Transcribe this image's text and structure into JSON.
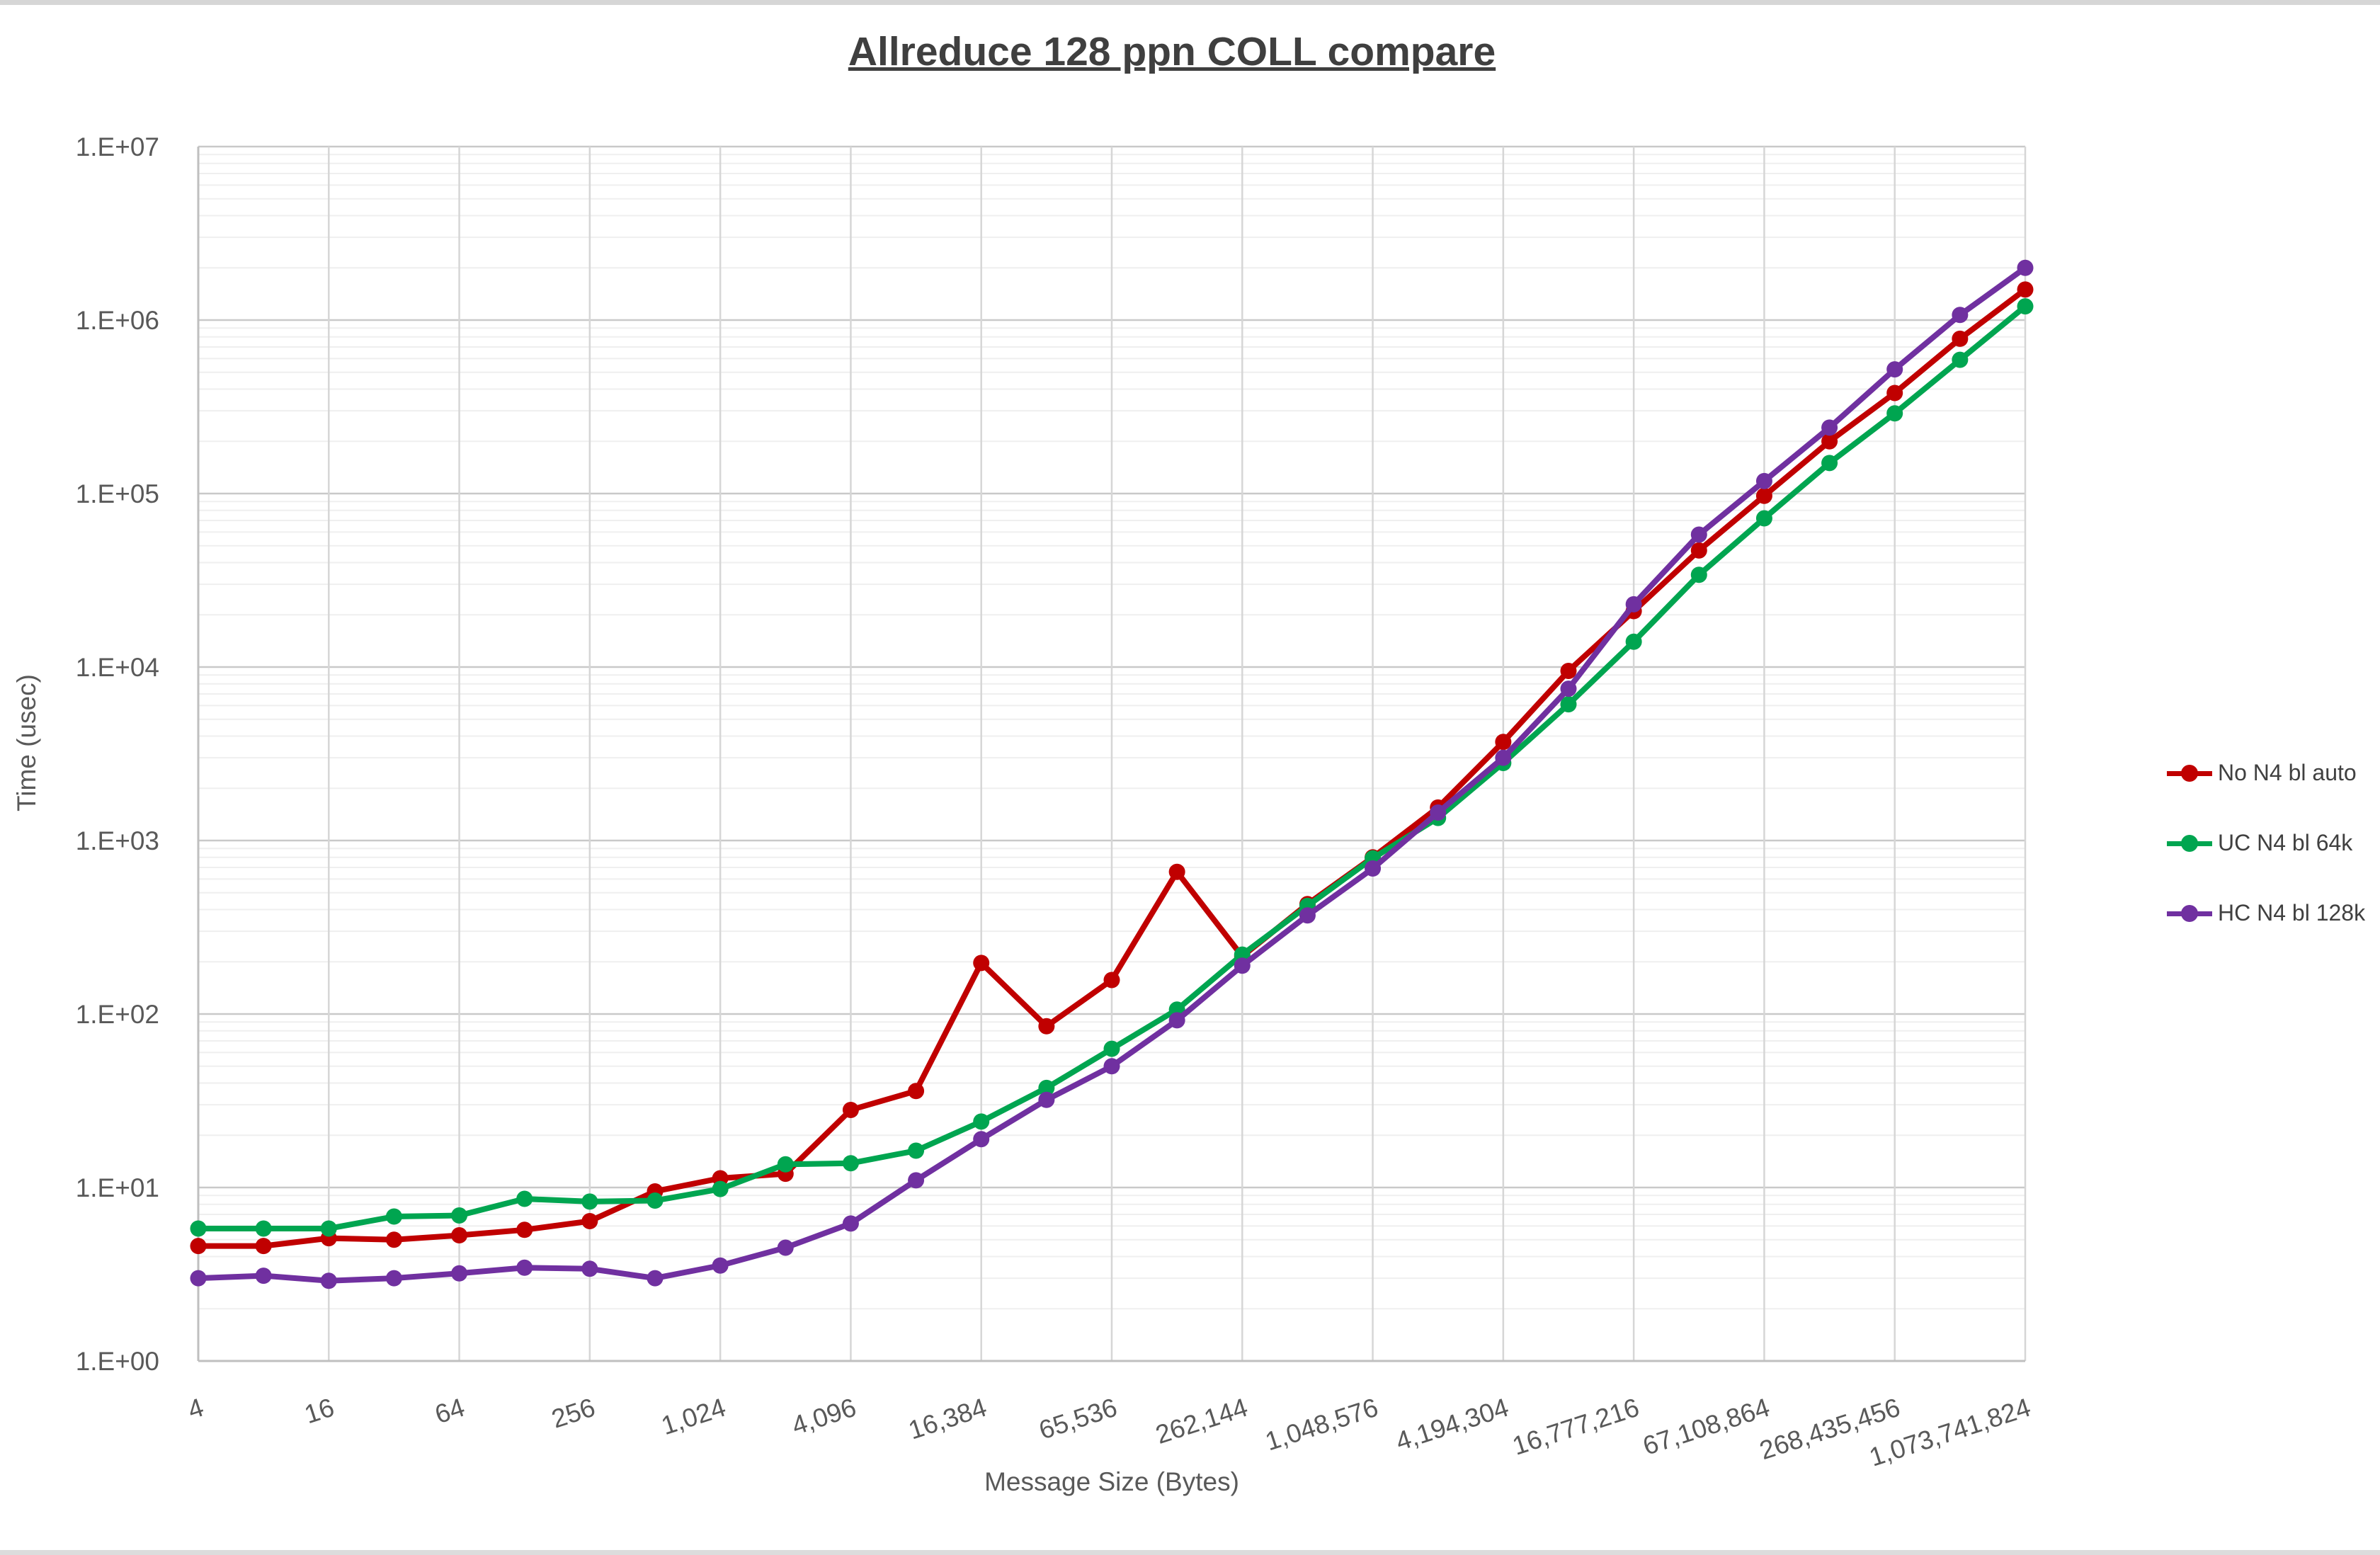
{
  "title": "Allreduce 128 ppn COLL compare",
  "y_axis": {
    "title": "Time (usec)",
    "tick_labels": [
      "1.E+00",
      "1.E+01",
      "1.E+02",
      "1.E+03",
      "1.E+04",
      "1.E+05",
      "1.E+06",
      "1.E+07"
    ]
  },
  "x_axis": {
    "title": "Message Size (Bytes)",
    "tick_labels": [
      "4",
      "16",
      "64",
      "256",
      "1,024",
      "4,096",
      "16,384",
      "65,536",
      "262,144",
      "1,048,576",
      "4,194,304",
      "16,777,216",
      "67,108,864",
      "268,435,456",
      "1,073,741,824"
    ],
    "tick_values": [
      4,
      16,
      64,
      256,
      1024,
      4096,
      16384,
      65536,
      262144,
      1048576,
      4194304,
      16777216,
      67108864,
      268435456,
      1073741824
    ]
  },
  "legend": {
    "items": [
      {
        "label": "No N4 bl auto",
        "color": "#C00000"
      },
      {
        "label": "UC N4 bl 64k",
        "color": "#00A550"
      },
      {
        "label": "HC N4 bl 128k",
        "color": "#7030A0"
      }
    ]
  },
  "colors": {
    "major_grid": "#c9c9c9",
    "minor_grid": "#efefef",
    "vertical_grid": "#d6d6d6",
    "axis_line": "#bfbfbf",
    "tick_text": "#595959",
    "title_text": "#3f3f3f"
  },
  "chart_data": {
    "type": "line",
    "title": "Allreduce 128 ppn COLL compare",
    "xlabel": "Message Size (Bytes)",
    "ylabel": "Time (usec)",
    "x_scale": "log2",
    "y_scale": "log10",
    "ylim": [
      1,
      10000000
    ],
    "xlim": [
      4,
      1073741824
    ],
    "grid": "major+minor",
    "legend_position": "right",
    "x": [
      4,
      8,
      16,
      32,
      64,
      128,
      256,
      512,
      1024,
      2048,
      4096,
      8192,
      16384,
      32768,
      65536,
      131072,
      262144,
      524288,
      1048576,
      2097152,
      4194304,
      8388608,
      16777216,
      33554432,
      67108864,
      134217728,
      268435456,
      536870912,
      1073741824
    ],
    "series": [
      {
        "name": "No N4 bl auto",
        "color": "#C00000",
        "values": [
          4.6,
          4.6,
          5.1,
          5.0,
          5.3,
          5.7,
          6.4,
          9.5,
          11.3,
          12,
          28,
          36,
          197,
          85,
          157,
          660,
          215,
          430,
          800,
          1550,
          3700,
          9500,
          21000,
          47000,
          97000,
          200000,
          380000,
          780000,
          1500000
        ]
      },
      {
        "name": "UC N4 bl 64k",
        "color": "#00A550",
        "values": [
          5.8,
          5.8,
          5.8,
          6.8,
          6.9,
          8.6,
          8.3,
          8.4,
          9.8,
          13.6,
          13.8,
          16.3,
          24,
          37.5,
          63,
          106,
          220,
          420,
          790,
          1350,
          2800,
          6100,
          14000,
          34000,
          72000,
          150000,
          290000,
          590000,
          1200000
        ]
      },
      {
        "name": "HC N4 bl 128k",
        "color": "#7030A0",
        "values": [
          3.0,
          3.1,
          2.9,
          3.0,
          3.2,
          3.45,
          3.4,
          3.0,
          3.55,
          4.5,
          6.2,
          11,
          19,
          32,
          50,
          92,
          190,
          370,
          690,
          1450,
          3000,
          7500,
          23000,
          58000,
          118000,
          240000,
          520000,
          1070000,
          2000000
        ]
      }
    ]
  }
}
